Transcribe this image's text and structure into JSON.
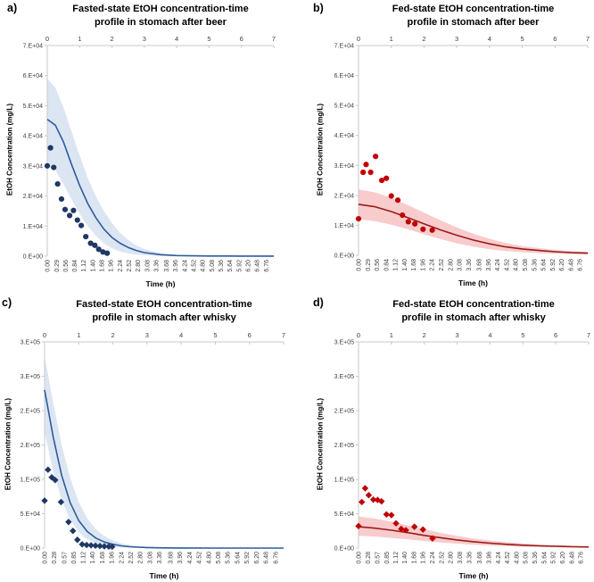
{
  "figure": {
    "background": "#ffffff",
    "axis_line_color": "#c8c8c8",
    "tick_label_color": "#3f3f3f"
  },
  "chart_data": [
    {
      "id": "a",
      "type": "line",
      "letter": "a)",
      "title_line1": "Fasted-state EtOH concentration-time",
      "title_line2": "profile in stomach after beer",
      "xlabel": "Time (h)",
      "ylabel": "EtOH Concentration (mg/L)",
      "xlim": [
        0,
        7
      ],
      "ylim": [
        0,
        70000
      ],
      "top_ticks": [
        "0",
        "1",
        "2",
        "3",
        "4",
        "5",
        "6",
        "7"
      ],
      "y_ticks": {
        "values": [
          0,
          10000,
          20000,
          30000,
          40000,
          50000,
          60000,
          70000
        ],
        "labels": [
          "0.E+00",
          "1.E+04",
          "2.E+04",
          "3.E+04",
          "4.E+04",
          "5.E+04",
          "6.E+04",
          "7.E+04"
        ]
      },
      "bottom_tick_labels": [
        "0.00",
        "0.29",
        "0.56",
        "0.84",
        "1.12",
        "1.40",
        "1.68",
        "1.96",
        "2.24",
        "2.52",
        "2.80",
        "3.08",
        "3.36",
        "3.68",
        "3.96",
        "4.24",
        "4.52",
        "4.80",
        "5.08",
        "5.36",
        "5.64",
        "5.92",
        "6.20",
        "6.48",
        "6.76"
      ],
      "marker": "circle",
      "colors": {
        "line": "#2e5b9b",
        "band": "#dce6f3",
        "marker": "#1f3864"
      },
      "band": {
        "x": [
          0,
          0.25,
          0.5,
          0.75,
          1,
          1.25,
          1.5,
          1.75,
          2,
          2.25,
          2.5,
          2.75,
          3,
          3.5,
          4,
          5,
          6,
          7
        ],
        "upper": [
          59000,
          56000,
          49500,
          41500,
          33500,
          26000,
          20000,
          15000,
          11000,
          7800,
          5400,
          3600,
          2400,
          1000,
          400,
          100,
          50,
          50
        ],
        "lower": [
          30000,
          28500,
          24000,
          18800,
          14000,
          10000,
          6800,
          4300,
          2600,
          1500,
          900,
          500,
          300,
          100,
          0,
          0,
          0,
          0
        ]
      },
      "line": {
        "x": [
          0,
          0.25,
          0.5,
          0.75,
          1,
          1.25,
          1.5,
          1.75,
          2,
          2.25,
          2.5,
          2.75,
          3,
          3.5,
          4,
          5,
          6,
          7
        ],
        "y": [
          45500,
          43500,
          38000,
          30500,
          23500,
          17500,
          12800,
          9000,
          6200,
          4300,
          2900,
          1900,
          1200,
          500,
          200,
          60,
          30,
          30
        ]
      },
      "points": {
        "x": [
          0.0,
          0.1,
          0.2,
          0.32,
          0.44,
          0.55,
          0.69,
          0.81,
          0.93,
          1.05,
          1.19,
          1.34,
          1.47,
          1.59,
          1.72,
          1.85
        ],
        "y": [
          30000,
          36000,
          29500,
          24000,
          19000,
          15500,
          13500,
          15200,
          12000,
          10200,
          6500,
          4300,
          3600,
          2300,
          1400,
          1000
        ]
      }
    },
    {
      "id": "b",
      "type": "line",
      "letter": "b)",
      "title_line1": "Fed-state EtOH concentration-time",
      "title_line2": "profile in stomach after beer",
      "xlabel": "Time (h)",
      "ylabel": "EtOH Concentration (mg/L)",
      "xlim": [
        0,
        7
      ],
      "ylim": [
        0,
        70000
      ],
      "top_ticks": [
        "0",
        "1",
        "2",
        "3",
        "4",
        "5",
        "6",
        "7"
      ],
      "y_ticks": {
        "values": [
          0,
          10000,
          20000,
          30000,
          40000,
          50000,
          60000,
          70000
        ],
        "labels": [
          "0.E+00",
          "1.E+04",
          "2.E+04",
          "3.E+04",
          "4.E+04",
          "5.E+04",
          "6.E+04",
          "7.E+04"
        ]
      },
      "bottom_tick_labels": [
        "0.00",
        "0.29",
        "0.56",
        "0.84",
        "1.12",
        "1.40",
        "1.68",
        "1.96",
        "2.24",
        "2.52",
        "2.80",
        "3.08",
        "3.36",
        "3.68",
        "3.96",
        "4.24",
        "4.52",
        "4.80",
        "5.08",
        "5.36",
        "5.64",
        "5.92",
        "6.20",
        "6.48",
        "6.76"
      ],
      "marker": "circle",
      "colors": {
        "line": "#9b1b1b",
        "band": "#f8cccc",
        "marker": "#c00000"
      },
      "band": {
        "x": [
          0,
          0.5,
          1,
          1.5,
          2,
          2.5,
          3,
          3.5,
          4,
          4.5,
          5,
          5.5,
          6,
          6.5,
          7
        ],
        "upper": [
          22000,
          21000,
          19200,
          16800,
          14200,
          11700,
          9300,
          7200,
          5500,
          4100,
          3100,
          2400,
          1800,
          1400,
          1100
        ],
        "lower": [
          12000,
          11400,
          10200,
          8700,
          7000,
          5400,
          4000,
          2900,
          2000,
          1400,
          1000,
          700,
          500,
          380,
          280
        ]
      },
      "line": {
        "x": [
          0,
          0.5,
          1,
          1.5,
          2,
          2.5,
          3,
          3.5,
          4,
          4.5,
          5,
          5.5,
          6,
          6.5,
          7
        ],
        "y": [
          17000,
          16200,
          14600,
          12600,
          10500,
          8500,
          6700,
          5100,
          3800,
          2800,
          2100,
          1600,
          1200,
          900,
          700
        ]
      },
      "points": {
        "x": [
          0.0,
          0.14,
          0.23,
          0.37,
          0.52,
          0.71,
          0.85,
          1.0,
          1.2,
          1.34,
          1.52,
          1.72,
          1.97,
          2.25
        ],
        "y": [
          12200,
          27700,
          30300,
          27700,
          33000,
          25000,
          25700,
          19800,
          18400,
          13400,
          11200,
          10500,
          8700,
          8400
        ]
      }
    },
    {
      "id": "c",
      "type": "line",
      "letter": "c)",
      "title_line1": "Fasted-state EtOH concentration-time",
      "title_line2": "profile in stomach after whisky",
      "xlabel": "Time (h)",
      "ylabel": "EtOH Concentration (mg/L)",
      "xlim": [
        0,
        7
      ],
      "ylim": [
        0,
        300000
      ],
      "top_ticks": [
        "0",
        "1",
        "2",
        "3",
        "4",
        "5",
        "6",
        "7"
      ],
      "y_ticks": {
        "values": [
          0,
          50000,
          100000,
          150000,
          200000,
          250000,
          300000
        ],
        "labels": [
          "0.E+00",
          "5.E+04",
          "1.E+05",
          "2.E+05",
          "2.E+05",
          "3.E+05",
          "3.E+05"
        ]
      },
      "bottom_tick_labels": [
        "0.00",
        "0.28",
        "0.57",
        "0.85",
        "1.12",
        "1.40",
        "1.68",
        "1.96",
        "2.24",
        "2.52",
        "2.80",
        "3.08",
        "3.36",
        "3.68",
        "3.96",
        "4.24",
        "4.52",
        "4.80",
        "5.08",
        "5.36",
        "5.64",
        "5.92",
        "6.20",
        "6.48",
        "6.76"
      ],
      "marker": "diamond",
      "colors": {
        "line": "#2e5b9b",
        "band": "#dce6f3",
        "marker": "#1f3864"
      },
      "band": {
        "x": [
          0,
          0.25,
          0.5,
          0.75,
          1,
          1.25,
          1.5,
          1.75,
          2,
          2.25,
          2.5,
          2.75,
          3,
          3.5,
          4,
          5,
          6,
          7
        ],
        "upper": [
          280000,
          212000,
          150000,
          102000,
          67000,
          43000,
          27500,
          17500,
          11000,
          7000,
          4400,
          2800,
          1800,
          700,
          300,
          80,
          50,
          50
        ],
        "lower": [
          168000,
          112000,
          70000,
          41000,
          23000,
          12500,
          6800,
          3700,
          2000,
          1100,
          600,
          350,
          200,
          60,
          0,
          0,
          0,
          0
        ]
      },
      "line": {
        "x": [
          0,
          0.25,
          0.5,
          0.75,
          1,
          1.25,
          1.5,
          1.75,
          2,
          2.25,
          2.5,
          2.75,
          3,
          3.5,
          4,
          5,
          6,
          7
        ],
        "y": [
          230000,
          162000,
          106000,
          66000,
          40000,
          24000,
          14500,
          8800,
          5400,
          3300,
          2000,
          1300,
          800,
          300,
          120,
          40,
          30,
          30
        ]
      },
      "points": {
        "x": [
          0.0,
          0.1,
          0.21,
          0.31,
          0.48,
          0.7,
          0.83,
          0.96,
          1.1,
          1.23,
          1.36,
          1.49,
          1.62,
          1.75,
          1.88,
          1.98
        ],
        "y": [
          69000,
          114000,
          103000,
          99000,
          67000,
          38000,
          25000,
          12000,
          5500,
          4500,
          4000,
          3500,
          3000,
          2500,
          2200,
          2000
        ]
      }
    },
    {
      "id": "d",
      "type": "line",
      "letter": "d)",
      "title_line1": "Fed-state EtOH concentration-time",
      "title_line2": "profile in stomach after whisky",
      "xlabel": "Time (h)",
      "ylabel": "EtOH Concentration (mg/L)",
      "xlim": [
        0,
        7
      ],
      "ylim": [
        0,
        300000
      ],
      "top_ticks": [
        "0",
        "1",
        "2",
        "3",
        "4",
        "5",
        "6",
        "7"
      ],
      "y_ticks": {
        "values": [
          0,
          50000,
          100000,
          150000,
          200000,
          250000,
          300000
        ],
        "labels": [
          "0.E+00",
          "5.E+04",
          "1.E+05",
          "2.E+05",
          "2.E+05",
          "3.E+05",
          "3.E+05"
        ]
      },
      "bottom_tick_labels": [
        "0.00",
        "0.28",
        "0.57",
        "0.85",
        "1.12",
        "1.40",
        "1.68",
        "1.96",
        "2.24",
        "2.52",
        "2.80",
        "3.08",
        "3.36",
        "3.68",
        "3.96",
        "4.24",
        "4.52",
        "4.80",
        "5.08",
        "5.36",
        "5.64",
        "5.92",
        "6.20",
        "6.48",
        "6.76"
      ],
      "marker": "diamond",
      "colors": {
        "line": "#9b1b1b",
        "band": "#f8cccc",
        "marker": "#c00000"
      },
      "band": {
        "x": [
          0,
          0.5,
          1,
          1.5,
          2,
          2.5,
          3,
          3.5,
          4,
          4.5,
          5,
          5.5,
          6,
          6.5,
          7
        ],
        "upper": [
          46000,
          43000,
          38500,
          33000,
          27500,
          22200,
          17700,
          14000,
          11000,
          8600,
          6700,
          5200,
          4100,
          3200,
          2600
        ],
        "lower": [
          18000,
          16800,
          14800,
          12600,
          10300,
          8200,
          6400,
          4900,
          3700,
          2800,
          2100,
          1600,
          1200,
          900,
          700
        ]
      },
      "line": {
        "x": [
          0,
          0.5,
          1,
          1.5,
          2,
          2.5,
          3,
          3.5,
          4,
          4.5,
          5,
          5.5,
          6,
          6.5,
          7
        ],
        "y": [
          31000,
          29000,
          26000,
          22500,
          18500,
          15000,
          11800,
          9200,
          7100,
          5500,
          4200,
          3300,
          2600,
          2000,
          1600
        ]
      },
      "points": {
        "x": [
          0.0,
          0.1,
          0.2,
          0.31,
          0.45,
          0.58,
          0.7,
          0.85,
          1.0,
          1.14,
          1.3,
          1.44,
          1.7,
          1.96,
          2.25
        ],
        "y": [
          32000,
          67000,
          87000,
          77000,
          70500,
          70000,
          68000,
          49000,
          48000,
          36000,
          28000,
          26000,
          31000,
          27000,
          14000
        ]
      }
    }
  ]
}
